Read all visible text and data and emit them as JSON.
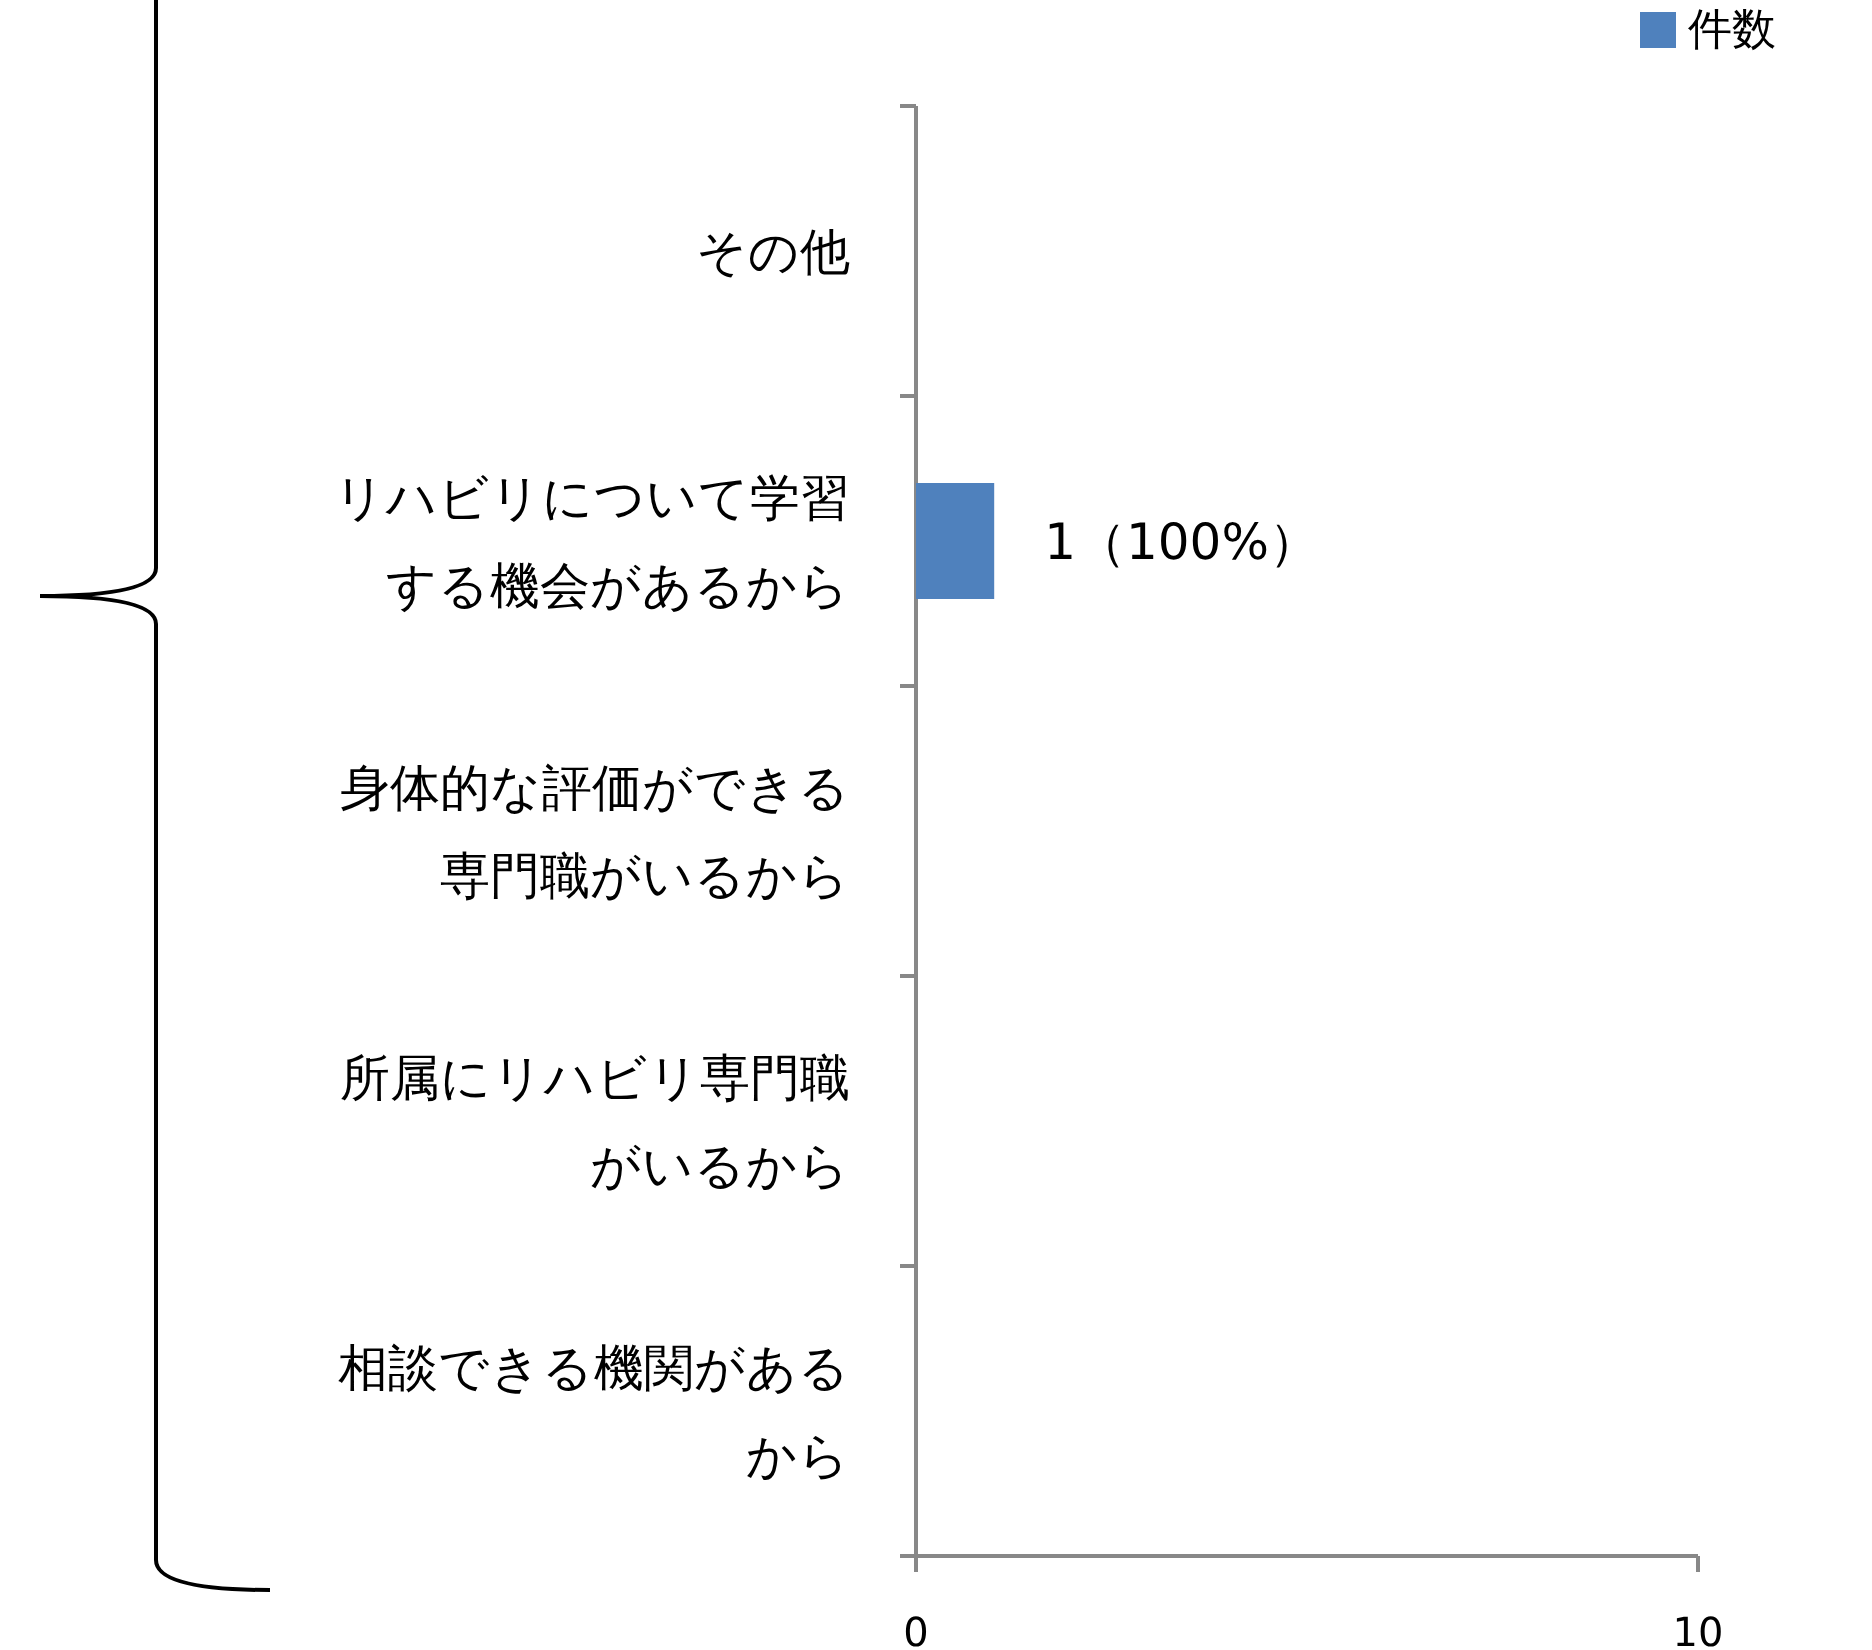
{
  "chart_data": {
    "type": "bar",
    "orientation": "horizontal",
    "categories": [
      "その他",
      "リハビリについて学習する機会があるから",
      "身体的な評価ができる専門職がいるから",
      "所属にリハビリ専門職がいるから",
      "相談できる機関があるから"
    ],
    "series": [
      {
        "name": "件数",
        "color": "#4f81bd",
        "values": [
          0,
          1,
          0,
          0,
          0
        ],
        "value_labels": [
          null,
          "1（100%）",
          null,
          null,
          null
        ]
      }
    ],
    "xlim": [
      0,
      10
    ],
    "xticks": [
      0,
      10
    ],
    "grid": false,
    "legend": "top right"
  }
}
